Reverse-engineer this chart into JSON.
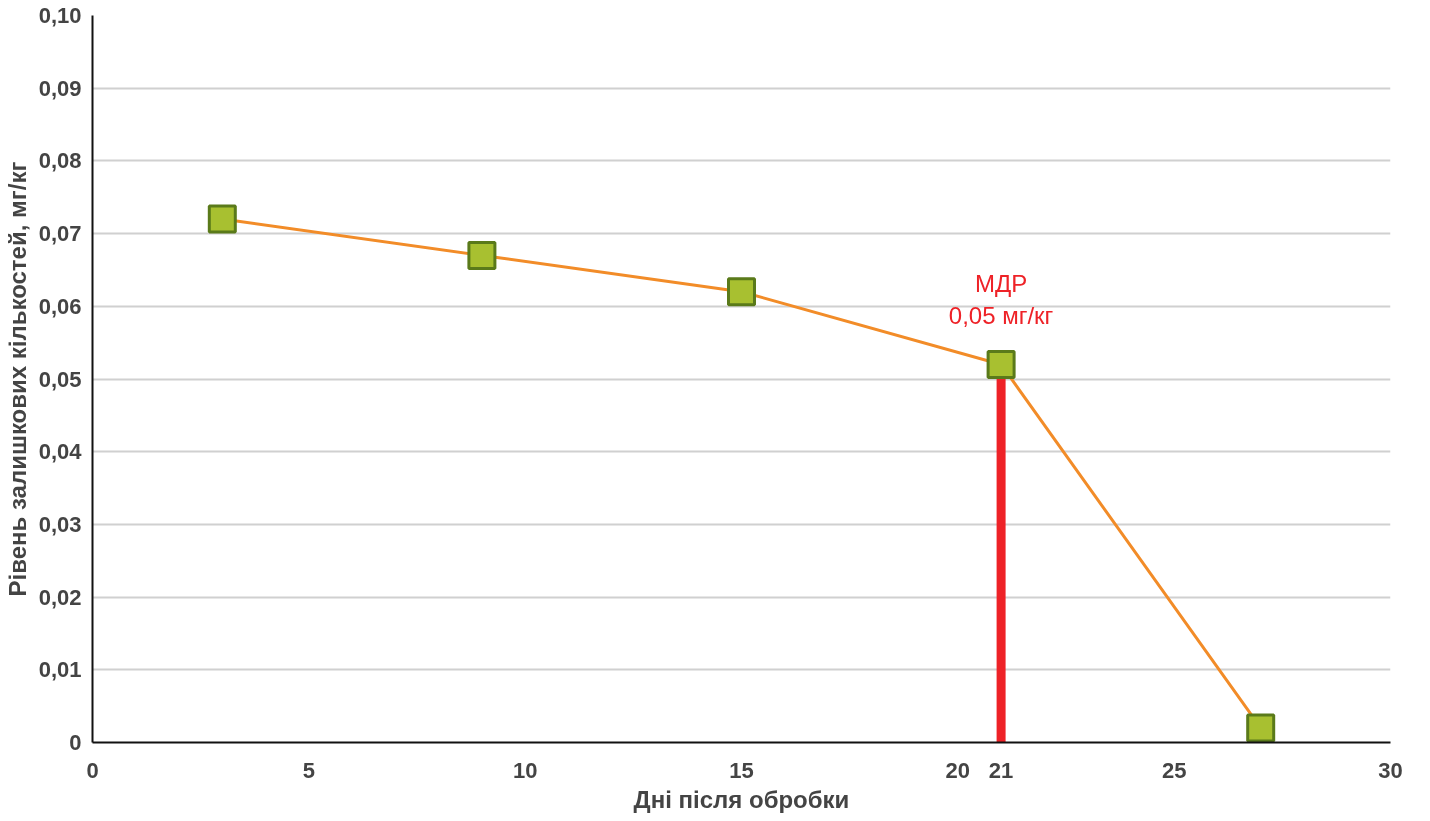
{
  "chart_data": {
    "type": "line",
    "xlabel": "Дні після обробки",
    "ylabel": "Рівень залишкових кількостей, мг/кг",
    "x": [
      3,
      9,
      15,
      21,
      27
    ],
    "series": [
      {
        "color": "#f28c28",
        "values": [
          0.072,
          0.067,
          0.062,
          0.052,
          0.002
        ]
      }
    ],
    "marker": "square",
    "line_style": "solid",
    "grid": "y",
    "xlim": [
      0,
      30
    ],
    "xticks": [
      0,
      5,
      10,
      15,
      20,
      {
        "value": 21,
        "label": "21"
      },
      25,
      30
    ],
    "ylim": [
      0,
      0.1
    ],
    "yticks": [
      0,
      {
        "value": 0.01,
        "label": "0,01"
      },
      {
        "value": 0.02,
        "label": "0,02"
      },
      {
        "value": 0.03,
        "label": "0,03"
      },
      {
        "value": 0.04,
        "label": "0,04"
      },
      {
        "value": 0.05,
        "label": "0,05"
      },
      {
        "value": 0.06,
        "label": "0,06"
      },
      {
        "value": 0.07,
        "label": "0,07"
      },
      {
        "value": 0.08,
        "label": "0,08"
      },
      {
        "value": 0.09,
        "label": "0,09"
      },
      {
        "value": 0.1,
        "label": "0,10"
      }
    ],
    "ref_lines": [
      {
        "axis": "x",
        "value": 21,
        "label": "МДР\n0,05 мг/кг",
        "color": "#ee2227"
      }
    ]
  }
}
